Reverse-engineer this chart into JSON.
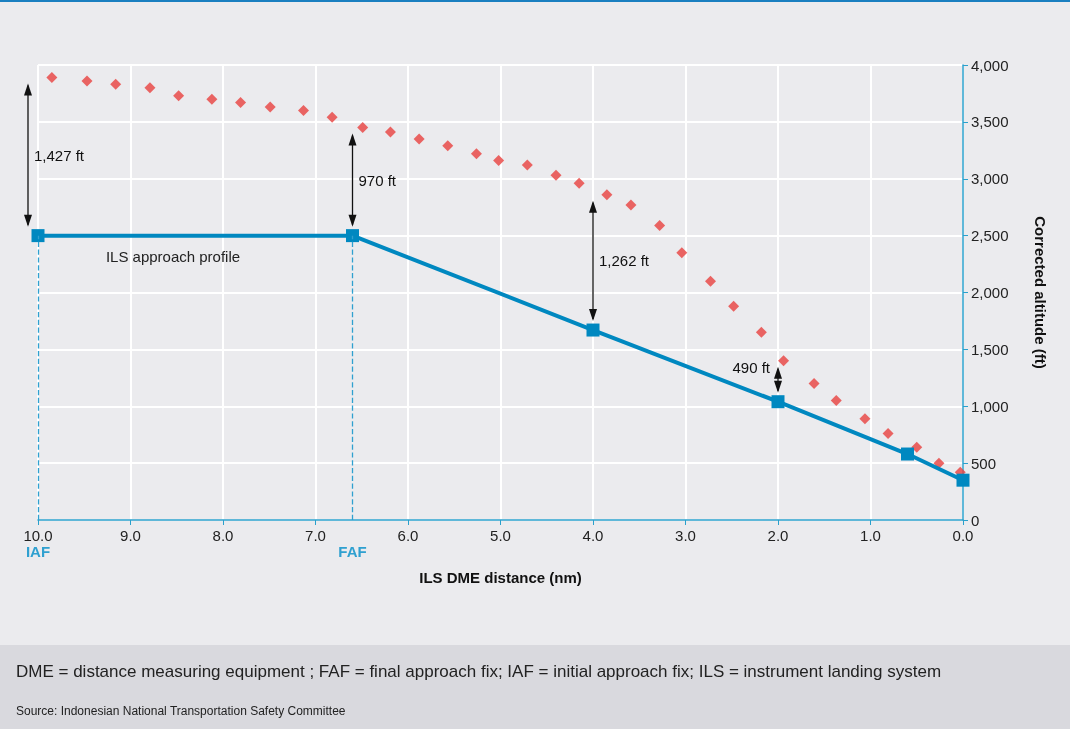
{
  "chart_data": {
    "type": "scatter",
    "xlabel": "ILS DME distance (nm)",
    "ylabel": "Corrected altitude (ft)",
    "xlim": [
      10,
      0
    ],
    "xticks": [
      {
        "value": 10,
        "label": "10.0"
      },
      {
        "value": 9,
        "label": "9.0"
      },
      {
        "value": 8,
        "label": "8.0"
      },
      {
        "value": 7,
        "label": "7.0"
      },
      {
        "value": 6,
        "label": "6.0"
      },
      {
        "value": 5,
        "label": "5.0"
      },
      {
        "value": 4,
        "label": "4.0"
      },
      {
        "value": 3,
        "label": "3.0"
      },
      {
        "value": 2,
        "label": "2.0"
      },
      {
        "value": 1,
        "label": "1.0"
      },
      {
        "value": 0,
        "label": "0.0"
      }
    ],
    "ylim": [
      0,
      4000
    ],
    "yticks": [
      0,
      500,
      {
        "value": 1000,
        "label": "1,000"
      },
      {
        "value": 1500,
        "label": "1,500"
      },
      {
        "value": 2000,
        "label": "2,000"
      },
      {
        "value": 2500,
        "label": "2,500"
      },
      {
        "value": 3000,
        "label": "3,000"
      },
      {
        "value": 3500,
        "label": "3,500"
      },
      {
        "value": 4000,
        "label": "4,000"
      }
    ],
    "grid": true,
    "legend": false,
    "series": [
      {
        "color": "#e8413f",
        "marker": "diamond",
        "x": [
          9.85,
          9.47,
          9.16,
          8.79,
          8.48,
          8.12,
          7.81,
          7.49,
          7.13,
          6.82,
          6.49,
          6.19,
          5.88,
          5.57,
          5.26,
          5.02,
          4.71,
          4.4,
          4.15,
          3.85,
          3.59,
          3.28,
          3.04,
          2.73,
          2.48,
          2.18,
          1.94,
          1.61,
          1.37,
          1.06,
          0.81,
          0.5,
          0.26,
          0.03
        ],
        "values": [
          3890,
          3860,
          3830,
          3800,
          3730,
          3700,
          3670,
          3630,
          3600,
          3540,
          3450,
          3410,
          3350,
          3290,
          3220,
          3160,
          3120,
          3030,
          2960,
          2860,
          2770,
          2590,
          2350,
          2100,
          1880,
          1650,
          1400,
          1200,
          1050,
          890,
          760,
          640,
          500,
          420
        ]
      },
      {
        "type": "line",
        "name": "ILS approach profile",
        "color": "#0088c0",
        "marker": "square",
        "line_style": "solid",
        "x": [
          10,
          6.6,
          4,
          2,
          0.6,
          0
        ],
        "values": [
          2500,
          2500,
          1670,
          1040,
          580,
          350
        ]
      }
    ],
    "ref_lines": [
      {
        "axis": "x",
        "value": 10,
        "label": "IAF",
        "color": "#2fa0d0",
        "line_style": "dashed"
      },
      {
        "axis": "x",
        "value": 6.6,
        "label": "FAF",
        "color": "#2fa0d0",
        "line_style": "dashed"
      }
    ],
    "annotations": [
      "1,427 ft",
      "970 ft",
      "1,262 ft",
      "490 ft",
      "DME = distance measuring equipment ; FAF = final approach fix; IAF = initial approach fix; ILS = instrument landing system",
      "Source: Indonesian National Transportation Safety Committee"
    ]
  }
}
